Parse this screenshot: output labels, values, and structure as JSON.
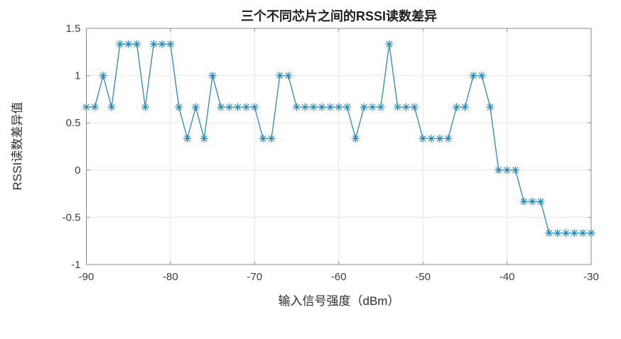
{
  "chart_data": {
    "type": "line",
    "title": "三个不同芯片之间的RSSI读数差异",
    "xlabel": "输入信号强度（dBm）",
    "ylabel": "RSSI读数差异值",
    "x": [
      -90,
      -89,
      -88,
      -87,
      -86,
      -85,
      -84,
      -83,
      -82,
      -81,
      -80,
      -79,
      -78,
      -77,
      -76,
      -75,
      -74,
      -73,
      -72,
      -71,
      -70,
      -69,
      -68,
      -67,
      -66,
      -65,
      -64,
      -63,
      -62,
      -61,
      -60,
      -59,
      -58,
      -57,
      -56,
      -55,
      -54,
      -53,
      -52,
      -51,
      -50,
      -49,
      -48,
      -47,
      -46,
      -45,
      -44,
      -43,
      -42,
      -41,
      -40,
      -39,
      -38,
      -37,
      -36,
      -35,
      -34,
      -33,
      -32,
      -31,
      -30
    ],
    "y": [
      0.6667,
      0.6667,
      1,
      0.6667,
      1.3333,
      1.3333,
      1.3333,
      0.6667,
      1.3333,
      1.3333,
      1.3333,
      0.6667,
      0.3333,
      0.6667,
      0.3333,
      1,
      0.6667,
      0.6667,
      0.6667,
      0.6667,
      0.6667,
      0.3333,
      0.3333,
      1,
      1,
      0.6667,
      0.6667,
      0.6667,
      0.6667,
      0.6667,
      0.6667,
      0.6667,
      0.3333,
      0.6667,
      0.6667,
      0.6667,
      1.3333,
      0.6667,
      0.6667,
      0.6667,
      0.3333,
      0.3333,
      0.3333,
      0.3333,
      0.6667,
      0.6667,
      1,
      1,
      0.6667,
      0,
      0,
      0,
      -0.3333,
      -0.3333,
      -0.3333,
      -0.6667,
      -0.6667,
      -0.6667,
      -0.6667,
      -0.6667,
      -0.6667
    ],
    "xlim": [
      -90,
      -30
    ],
    "ylim": [
      -1,
      1.5
    ],
    "xticks": [
      -90,
      -80,
      -70,
      -60,
      -50,
      -40,
      -30
    ],
    "yticks": [
      -1,
      -0.5,
      0,
      0.5,
      1,
      1.5
    ],
    "xtick_labels": [
      "-90",
      "-80",
      "-70",
      "-60",
      "-50",
      "-40",
      "-30"
    ],
    "ytick_labels": [
      "-1",
      "-0.5",
      "0",
      "0.5",
      "1",
      "1.5"
    ],
    "grid": true,
    "legend": "none",
    "marker": "asterisk",
    "colors": {
      "line": "#2a89b8",
      "grid": "#e6e6e6",
      "axis": "#8c8c8c",
      "tick_text": "#3d3d3d",
      "title_text": "#1f1f1f",
      "background": "#ffffff"
    }
  }
}
